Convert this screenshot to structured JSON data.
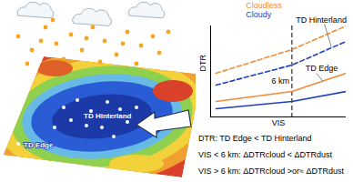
{
  "map": {
    "labels": {
      "hinterland": "TD Hinterland",
      "edge": "TD Edge"
    }
  },
  "chart_data": {
    "type": "line",
    "x_label": "VIS",
    "y_label": "DTR",
    "tick_labels": false,
    "xlim": [
      0,
      10
    ],
    "ylim": [
      0,
      10
    ],
    "xticks": [],
    "yticks": [],
    "legend": "top",
    "x": [
      0.4,
      6,
      10
    ],
    "series": [
      {
        "name": "Cloudless",
        "color": "#f28c3a",
        "line_style": "dashed",
        "values": [
          4.8,
          7.4,
          10
        ]
      },
      {
        "name": "Cloudy",
        "color": "#1f3fbf",
        "line_style": "dashed",
        "values": [
          3.5,
          5.7,
          8.3
        ]
      },
      {
        "name": "Cloudless",
        "color": "#f28c3a",
        "line_style": "solid",
        "values": [
          1.7,
          2.8,
          4.8
        ]
      },
      {
        "name": "Cloudy",
        "color": "#1f3fbf",
        "line_style": "solid",
        "values": [
          0.9,
          1.7,
          2.8
        ]
      }
    ],
    "reference_line": {
      "x": 6,
      "label": "6 km",
      "line_style": "dashed"
    },
    "annotations": [
      "TD Hinterland",
      "TD Edge"
    ]
  },
  "notes": [
    "DTR: TD Edge < TD Hinterland",
    "VIS < 6 km: ΔDTRcloud < ΔDTRdust",
    "VIS > 6 km: ΔDTRcloud >or≈ ΔDTRdust"
  ]
}
